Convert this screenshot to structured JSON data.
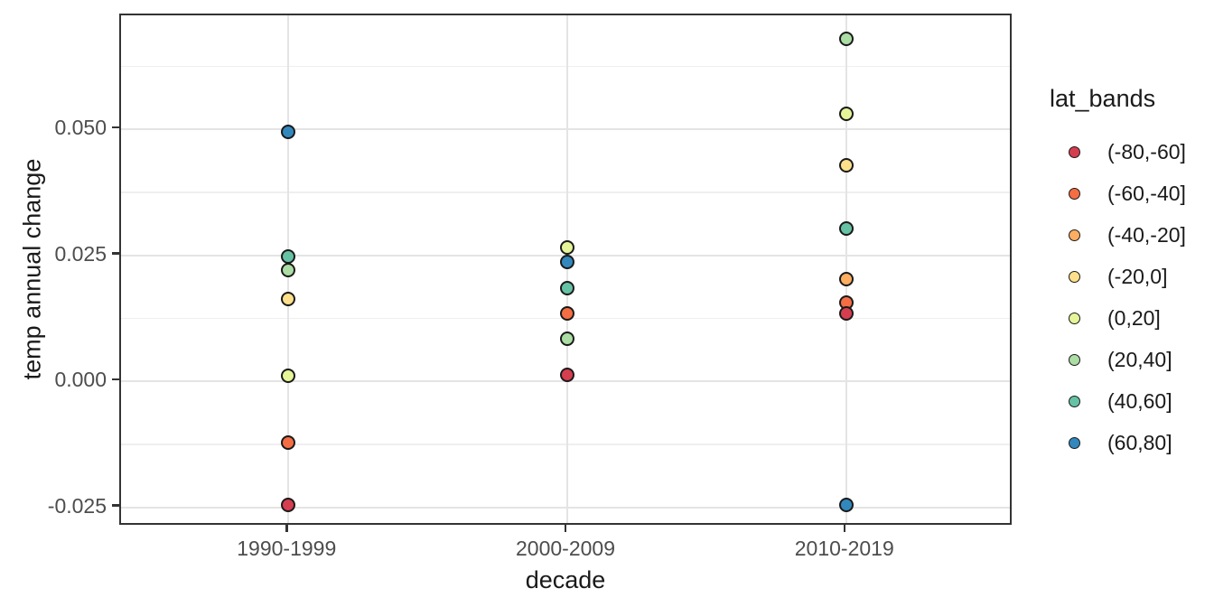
{
  "chart_data": {
    "type": "scatter",
    "title": "",
    "xlabel": "decade",
    "ylabel": "temp annual change",
    "categories": [
      "1990-1999",
      "2000-2009",
      "2010-2019"
    ],
    "y_tick_labels": [
      "-0.025",
      "0.000",
      "0.025",
      "0.050"
    ],
    "y_tick_values": [
      -0.025,
      0.0,
      0.025,
      0.05
    ],
    "y_minor_values": [
      -0.0125,
      0.0125,
      0.0375,
      0.0625
    ],
    "ylim": [
      -0.029,
      0.0726
    ],
    "grid": "on",
    "legend_position": "right",
    "legend_title": "lat_bands",
    "series": [
      {
        "name": "(-80,-60]",
        "color": "#d53e4f",
        "values": [
          -0.0245,
          0.0012,
          0.0135
        ]
      },
      {
        "name": "(-60,-40]",
        "color": "#f46d43",
        "values": [
          -0.0122,
          0.0134,
          0.0156
        ]
      },
      {
        "name": "(-40,-20]",
        "color": "#fdae61",
        "values": [
          null,
          null,
          0.0202
        ]
      },
      {
        "name": "(-20,0]",
        "color": "#fee08b",
        "values": [
          0.0163,
          null,
          0.0429
        ]
      },
      {
        "name": "(0,20]",
        "color": "#e6f598",
        "values": [
          0.001,
          0.0266,
          0.053
        ]
      },
      {
        "name": "(20,40]",
        "color": "#abdda4",
        "values": [
          0.0221,
          0.0084,
          0.068
        ]
      },
      {
        "name": "(40,60]",
        "color": "#66c2a5",
        "values": [
          0.0248,
          0.0184,
          0.0302
        ]
      },
      {
        "name": "(60,80]",
        "color": "#3288bd",
        "values": [
          0.0495,
          0.0236,
          -0.0245
        ]
      }
    ],
    "colors": {
      "grid_major": "#e4e4e4",
      "grid_minor": "#efefef",
      "panel_border": "#333333",
      "tick_mark": "#333333",
      "tick_label": "#4d4d4d",
      "axis_title": "#1a1a1a",
      "point_stroke": "#1a1a1a",
      "background": "#ffffff"
    }
  }
}
